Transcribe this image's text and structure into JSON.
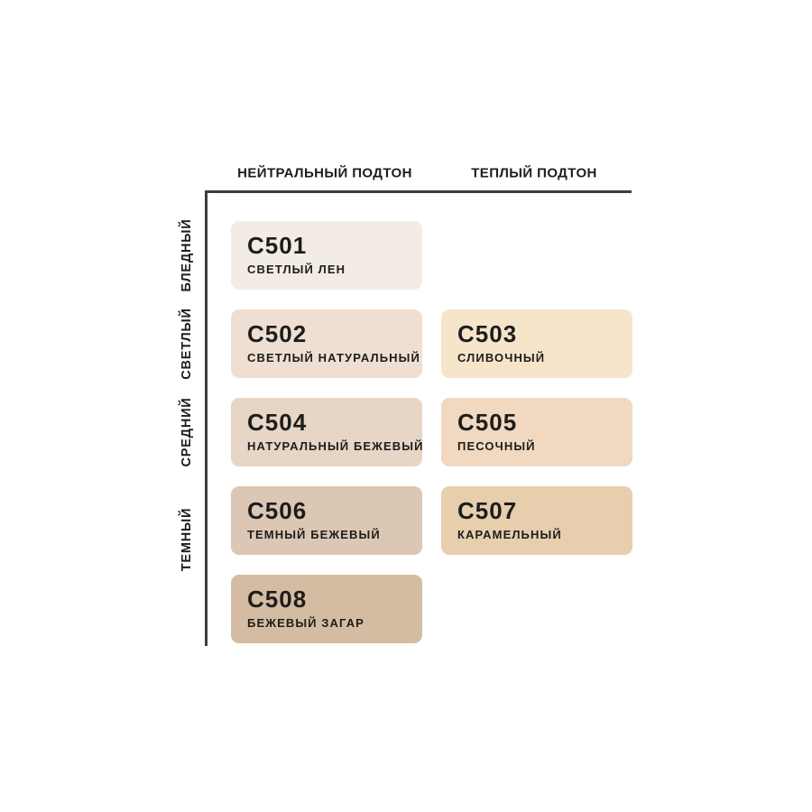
{
  "page": {
    "background": "#ffffff",
    "text_color": "#1d1d1b",
    "axis_color": "#3d3d3d"
  },
  "matrix": {
    "column_headers": [
      {
        "label": "НЕЙТРАЛЬНЫЙ ПОДТОН"
      },
      {
        "label": "ТЕПЛЫЙ ПОДТОН"
      }
    ],
    "row_labels": [
      {
        "label": "БЛЕДНЫЙ"
      },
      {
        "label": "СВЕТЛЫЙ"
      },
      {
        "label": "СРЕДНИЙ"
      },
      {
        "label": "ТЕМНЫЙ"
      }
    ],
    "swatches": [
      {
        "code": "C501",
        "name": "СВЕТЛЫЙ ЛЕН",
        "color": "#F2ECE4",
        "undertone": "НЕЙТРАЛЬНЫЙ ПОДТОН",
        "depth": "БЛЕДНЫЙ",
        "grid": {
          "col": 0,
          "row": 0
        }
      },
      {
        "code": "C502",
        "name": "СВЕТЛЫЙ НАТУРАЛЬНЫЙ",
        "color": "#EEDFD2",
        "undertone": "НЕЙТРАЛЬНЫЙ ПОДТОН",
        "depth": "СВЕТЛЫЙ",
        "grid": {
          "col": 0,
          "row": 1
        }
      },
      {
        "code": "C503",
        "name": "СЛИВОЧНЫЙ",
        "color": "#F6E5CA",
        "undertone": "ТЕПЛЫЙ ПОДТОН",
        "depth": "СВЕТЛЫЙ",
        "grid": {
          "col": 1,
          "row": 1
        }
      },
      {
        "code": "C504",
        "name": "НАТУРАЛЬНЫЙ БЕЖЕВЫЙ",
        "color": "#E7D5C6",
        "undertone": "НЕЙТРАЛЬНЫЙ ПОДТОН",
        "depth": "СРЕДНИЙ",
        "grid": {
          "col": 0,
          "row": 2
        }
      },
      {
        "code": "C505",
        "name": "ПЕСОЧНЫЙ",
        "color": "#F0D9C0",
        "undertone": "ТЕПЛЫЙ ПОДТОН",
        "depth": "СРЕДНИЙ",
        "grid": {
          "col": 1,
          "row": 2
        }
      },
      {
        "code": "C506",
        "name": "ТЕМНЫЙ БЕЖЕВЫЙ",
        "color": "#DCC7B5",
        "undertone": "НЕЙТРАЛЬНЫЙ ПОДТОН",
        "depth": "ТЕМНЫЙ",
        "grid": {
          "col": 0,
          "row": 3
        }
      },
      {
        "code": "C507",
        "name": "КАРАМЕЛЬНЫЙ",
        "color": "#E7CEAD",
        "undertone": "ТЕПЛЫЙ ПОДТОН",
        "depth": "ТЕМНЫЙ",
        "grid": {
          "col": 1,
          "row": 3
        }
      },
      {
        "code": "C508",
        "name": "БЕЖЕВЫЙ ЗАГАР",
        "color": "#D4BCA3",
        "undertone": "НЕЙТРАЛЬНЫЙ ПОДТОН",
        "depth": "ТЕМНЫЙ",
        "grid": {
          "col": 0,
          "row": 4
        }
      }
    ]
  },
  "chart_data": {
    "type": "table",
    "title": "",
    "x_categories": [
      "НЕЙТРАЛЬНЫЙ ПОДТОН",
      "ТЕПЛЫЙ ПОДТОН"
    ],
    "y_categories": [
      "БЛЕДНЫЙ",
      "СВЕТЛЫЙ",
      "СРЕДНИЙ",
      "ТЕМНЫЙ"
    ],
    "legend_position": "none",
    "grid": false,
    "cells": [
      {
        "x": "НЕЙТРАЛЬНЫЙ ПОДТОН",
        "y": "БЛЕДНЫЙ",
        "code": "C501",
        "label": "СВЕТЛЫЙ ЛЕН",
        "color": "#F2ECE4"
      },
      {
        "x": "НЕЙТРАЛЬНЫЙ ПОДТОН",
        "y": "СВЕТЛЫЙ",
        "code": "C502",
        "label": "СВЕТЛЫЙ НАТУРАЛЬНЫЙ",
        "color": "#EEDFD2"
      },
      {
        "x": "ТЕПЛЫЙ ПОДТОН",
        "y": "СВЕТЛЫЙ",
        "code": "C503",
        "label": "СЛИВОЧНЫЙ",
        "color": "#F6E5CA"
      },
      {
        "x": "НЕЙТРАЛЬНЫЙ ПОДТОН",
        "y": "СРЕДНИЙ",
        "code": "C504",
        "label": "НАТУРАЛЬНЫЙ БЕЖЕВЫЙ",
        "color": "#E7D5C6"
      },
      {
        "x": "ТЕПЛЫЙ ПОДТОН",
        "y": "СРЕДНИЙ",
        "code": "C505",
        "label": "ПЕСОЧНЫЙ",
        "color": "#F0D9C0"
      },
      {
        "x": "НЕЙТРАЛЬНЫЙ ПОДТОН",
        "y": "ТЕМНЫЙ",
        "code": "C506",
        "label": "ТЕМНЫЙ БЕЖЕВЫЙ",
        "color": "#DCC7B5"
      },
      {
        "x": "ТЕПЛЫЙ ПОДТОН",
        "y": "ТЕМНЫЙ",
        "code": "C507",
        "label": "КАРАМЕЛЬНЫЙ",
        "color": "#E7CEAD"
      },
      {
        "x": "НЕЙТРАЛЬНЫЙ ПОДТОН",
        "y": "ТЕМНЫЙ",
        "code": "C508",
        "label": "БЕЖЕВЫЙ ЗАГАР",
        "color": "#D4BCA3"
      }
    ]
  }
}
